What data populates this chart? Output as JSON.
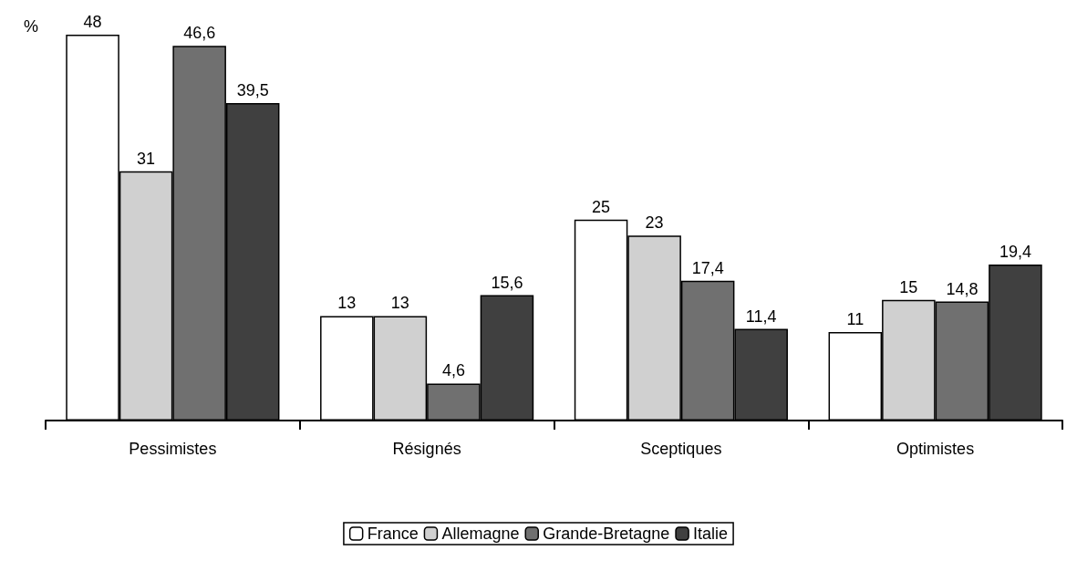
{
  "chart_data": {
    "type": "bar",
    "ylabel": "%",
    "categories": [
      "Pessimistes",
      "Résignés",
      "Sceptiques",
      "Optimistes"
    ],
    "series": [
      {
        "name": "France",
        "color": "#ffffff",
        "values": [
          48,
          13,
          25,
          11
        ],
        "value_labels": [
          "48",
          "13",
          "25",
          "11"
        ]
      },
      {
        "name": "Allemagne",
        "color": "#d0d0d0",
        "values": [
          31,
          13,
          23,
          15
        ],
        "value_labels": [
          "31",
          "13",
          "23",
          "15"
        ]
      },
      {
        "name": "Grande-Bretagne",
        "color": "#707070",
        "values": [
          46.6,
          4.6,
          17.4,
          14.8
        ],
        "value_labels": [
          "46,6",
          "4,6",
          "17,4",
          "14,8"
        ]
      },
      {
        "name": "Italie",
        "color": "#404040",
        "values": [
          39.5,
          15.6,
          11.4,
          19.4
        ],
        "value_labels": [
          "39,5",
          "15,6",
          "11,4",
          "19,4"
        ]
      }
    ],
    "grid": false,
    "legend": "bottom"
  }
}
